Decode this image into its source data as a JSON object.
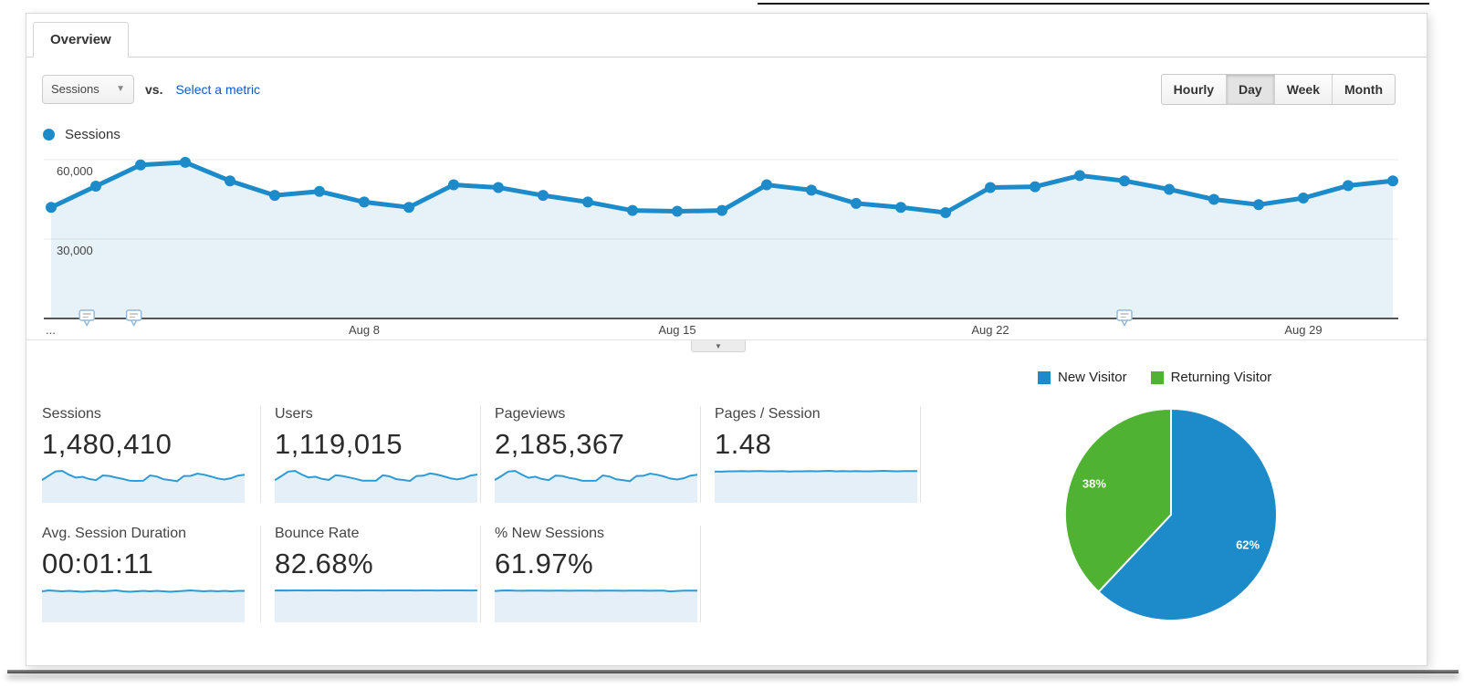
{
  "tabs": {
    "overview_label": "Overview"
  },
  "toolbar": {
    "metric_dropdown_value": "Sessions",
    "vs_label": "vs.",
    "select_metric_label": "Select a metric",
    "granularity_buttons": [
      "Hourly",
      "Day",
      "Week",
      "Month"
    ],
    "granularity_selected": "Day"
  },
  "colors": {
    "chart_blue": "#1d8bc9",
    "chart_area_fill": "#e7f1f8",
    "pie_blue": "#1d8bc9",
    "pie_green": "#50b232",
    "link_blue": "#1155cc"
  },
  "big_chart_legend": {
    "series_label": "Sessions"
  },
  "chart_data": [
    {
      "type": "line",
      "title": "Sessions by day",
      "series_name": "Sessions",
      "x": [
        "Aug 1",
        "Aug 2",
        "Aug 3",
        "Aug 4",
        "Aug 5",
        "Aug 6",
        "Aug 7",
        "Aug 8",
        "Aug 9",
        "Aug 10",
        "Aug 11",
        "Aug 12",
        "Aug 13",
        "Aug 14",
        "Aug 15",
        "Aug 16",
        "Aug 17",
        "Aug 18",
        "Aug 19",
        "Aug 20",
        "Aug 21",
        "Aug 22",
        "Aug 23",
        "Aug 24",
        "Aug 25",
        "Aug 26",
        "Aug 27",
        "Aug 28",
        "Aug 29",
        "Aug 30",
        "Aug 31"
      ],
      "values": [
        42000,
        50000,
        58000,
        59000,
        52000,
        46500,
        48000,
        44000,
        42000,
        50500,
        49500,
        46500,
        44000,
        40800,
        40500,
        40800,
        50500,
        48500,
        43500,
        42000,
        40000,
        49500,
        49800,
        54000,
        52000,
        48800,
        45000,
        43000,
        45500,
        50200,
        52000
      ],
      "ylim": [
        0,
        67000
      ],
      "yticks": [
        {
          "value": 30000,
          "label": "30,000"
        },
        {
          "value": 60000,
          "label": "60,000"
        }
      ],
      "x_ticks": [
        {
          "index": 0,
          "label": "..."
        },
        {
          "index": 7,
          "label": "Aug 8"
        },
        {
          "index": 14,
          "label": "Aug 15"
        },
        {
          "index": 21,
          "label": "Aug 22"
        },
        {
          "index": 28,
          "label": "Aug 29"
        }
      ],
      "annotation_days": [
        0.8,
        1.85,
        24
      ],
      "grid": true,
      "legend_position": "top-left"
    },
    {
      "type": "pie",
      "labels": [
        "New Visitor",
        "Returning Visitor"
      ],
      "values": [
        62,
        38
      ],
      "slice_labels": [
        "62%",
        "38%"
      ],
      "colors": [
        "#1d8bc9",
        "#50b232"
      ],
      "legend_position": "top"
    }
  ],
  "metrics": {
    "row1": [
      {
        "label": "Sessions",
        "value": "1,480,410",
        "spark": [
          42,
          50,
          58,
          59,
          52,
          46.5,
          48,
          44,
          42,
          50.5,
          49.5,
          46.5,
          44,
          40.8,
          40.5,
          40.8,
          50.5,
          48.5,
          43.5,
          42,
          40,
          49.5,
          49.8,
          54,
          52,
          48.8,
          45,
          43,
          45.5,
          50.2,
          52
        ]
      },
      {
        "label": "Users",
        "value": "1,119,015",
        "spark": [
          31,
          37,
          43,
          44,
          39,
          35,
          36,
          33,
          31.5,
          38,
          37,
          35,
          33,
          30.5,
          30.4,
          30.6,
          38,
          36.5,
          32.5,
          31.5,
          30,
          37,
          37.3,
          40.5,
          39,
          36.6,
          33.8,
          32.3,
          34,
          37.6,
          39
        ]
      },
      {
        "label": "Pageviews",
        "value": "2,185,367",
        "spark": [
          62,
          73,
          85,
          87,
          77,
          68,
          71,
          65,
          62,
          74,
          73,
          68,
          65,
          60,
          59.8,
          60.2,
          74.5,
          71.5,
          64,
          62,
          59,
          73,
          73.5,
          79.5,
          76.5,
          72,
          66,
          63.5,
          67,
          74,
          76.5
        ]
      },
      {
        "label": "Pages / Session",
        "value": "1.48",
        "spark": [
          1.46,
          1.45,
          1.47,
          1.47,
          1.48,
          1.47,
          1.48,
          1.48,
          1.47,
          1.47,
          1.48,
          1.46,
          1.47,
          1.47,
          1.48,
          1.47,
          1.48,
          1.49,
          1.47,
          1.48,
          1.47,
          1.48,
          1.47,
          1.47,
          1.48,
          1.49,
          1.48,
          1.47,
          1.48,
          1.48,
          1.48
        ]
      }
    ],
    "row2": [
      {
        "label": "Avg. Session Duration",
        "value": "00:01:11",
        "spark": [
          70,
          72,
          71,
          70,
          71,
          70,
          69,
          70,
          71,
          70,
          71,
          72,
          70,
          69,
          70,
          71,
          70,
          71,
          70,
          69,
          70,
          71,
          72,
          71,
          70,
          71,
          70,
          71,
          70,
          71,
          71
        ]
      },
      {
        "label": "Bounce Rate",
        "value": "82.68%",
        "spark": [
          82.5,
          82.7,
          82.6,
          82.7,
          82.7,
          82.6,
          82.7,
          82.8,
          82.7,
          82.6,
          82.7,
          82.7,
          82.6,
          82.7,
          82.8,
          82.7,
          82.6,
          82.7,
          82.7,
          82.8,
          82.7,
          82.6,
          82.7,
          82.7,
          82.6,
          82.7,
          82.8,
          82.7,
          82.7,
          82.6,
          82.7
        ]
      },
      {
        "label": "% New Sessions",
        "value": "61.97%",
        "spark": [
          61,
          62.3,
          62.5,
          62,
          61.8,
          62,
          61.9,
          62,
          61.8,
          61.9,
          62,
          61.8,
          61.9,
          62,
          61.9,
          61.8,
          62,
          61.9,
          62,
          61.8,
          61.9,
          62,
          61.9,
          61.8,
          62,
          61.9,
          60.5,
          61.5,
          62,
          61.9,
          62
        ]
      }
    ]
  },
  "pie_legend": {
    "new_visitor": "New Visitor",
    "returning_visitor": "Returning Visitor"
  }
}
